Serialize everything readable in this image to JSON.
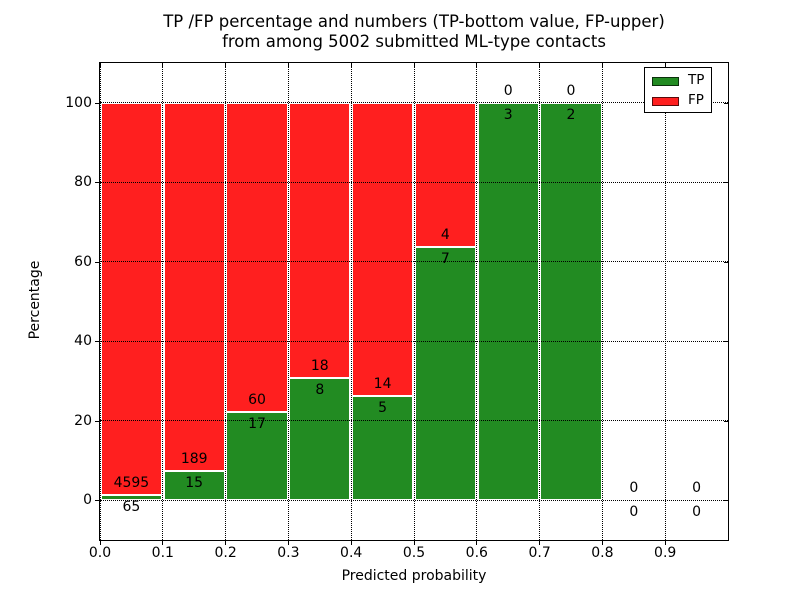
{
  "chart_data": {
    "type": "bar",
    "stacked": true,
    "title_line1": "TP /FP percentage and numbers (TP-bottom value, FP-upper)",
    "title_line2": "from among 5002 submitted ML-type contacts",
    "xlabel": "Predicted probability",
    "ylabel": "Percentage",
    "xlim": [
      0.0,
      1.0
    ],
    "ylim": [
      -10,
      110
    ],
    "x_tick_values": [
      0.0,
      0.1,
      0.2,
      0.3,
      0.4,
      0.5,
      0.6,
      0.7,
      0.8,
      0.9
    ],
    "x_tick_labels": [
      "0.0",
      "0.1",
      "0.2",
      "0.3",
      "0.4",
      "0.5",
      "0.6",
      "0.7",
      "0.8",
      "0.9"
    ],
    "y_tick_values": [
      0,
      20,
      40,
      60,
      80,
      100
    ],
    "y_tick_labels": [
      "0",
      "20",
      "40",
      "60",
      "80",
      "100"
    ],
    "grid": "dotted",
    "total_contacts": 5002,
    "colors": {
      "tp": "#228b22",
      "fp": "#ff1f1f",
      "bar_edge": "#ffffff"
    },
    "legend": {
      "position": "upper-right",
      "entries": [
        {
          "label": "TP",
          "color": "#228b22"
        },
        {
          "label": "FP",
          "color": "#ff1f1f"
        }
      ]
    },
    "bins": [
      {
        "range": [
          0.0,
          0.1
        ],
        "tp": 65,
        "fp": 4595,
        "tp_pct": 1.39
      },
      {
        "range": [
          0.1,
          0.2
        ],
        "tp": 15,
        "fp": 189,
        "tp_pct": 7.35
      },
      {
        "range": [
          0.2,
          0.3
        ],
        "tp": 17,
        "fp": 60,
        "tp_pct": 22.08
      },
      {
        "range": [
          0.3,
          0.4
        ],
        "tp": 8,
        "fp": 18,
        "tp_pct": 30.77
      },
      {
        "range": [
          0.4,
          0.5
        ],
        "tp": 5,
        "fp": 14,
        "tp_pct": 26.32
      },
      {
        "range": [
          0.5,
          0.6
        ],
        "tp": 7,
        "fp": 4,
        "tp_pct": 63.64
      },
      {
        "range": [
          0.6,
          0.7
        ],
        "tp": 3,
        "fp": 0,
        "tp_pct": 100
      },
      {
        "range": [
          0.7,
          0.8
        ],
        "tp": 2,
        "fp": 0,
        "tp_pct": 100
      },
      {
        "range": [
          0.8,
          0.9
        ],
        "tp": 0,
        "fp": 0,
        "tp_pct": null
      },
      {
        "range": [
          0.9,
          1.0
        ],
        "tp": 0,
        "fp": 0,
        "tp_pct": null
      }
    ]
  }
}
